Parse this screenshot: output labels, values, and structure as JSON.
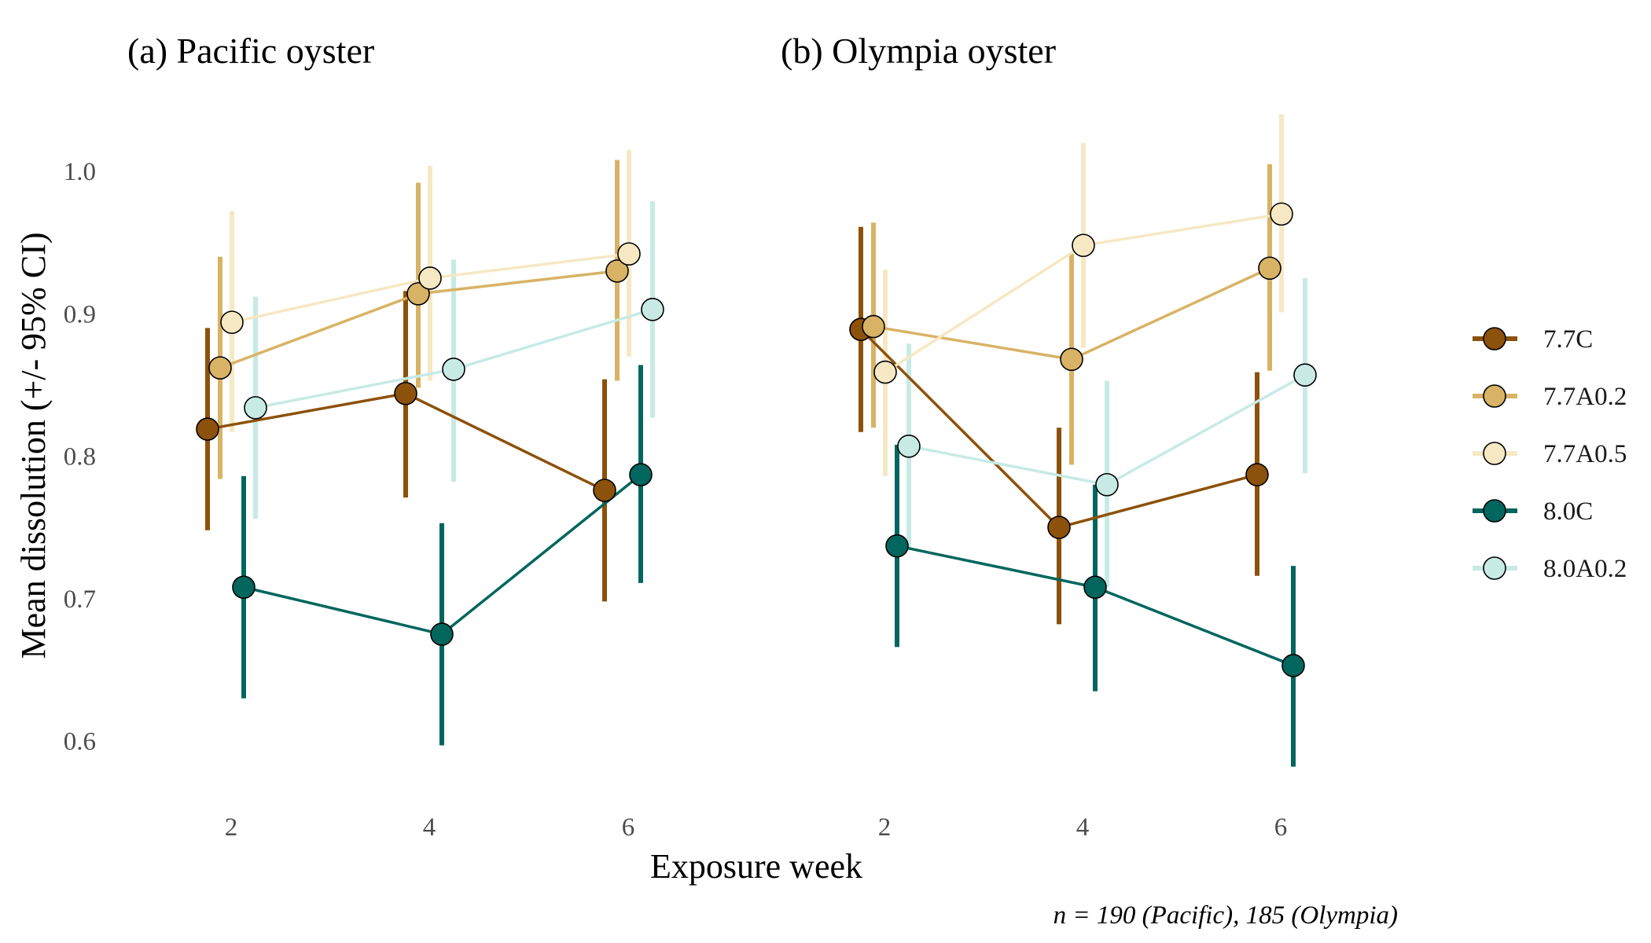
{
  "chart_data": {
    "type": "line",
    "ylabel": "Mean dissolution (+/- 95% CI)",
    "xlabel": "Exposure week",
    "note": "n = 190 (Pacific), 185 (Olympia)",
    "ylim": [
      0.55,
      1.05
    ],
    "yticks": [
      0.6,
      0.7,
      0.8,
      0.9,
      1.0
    ],
    "ytick_labels": [
      "0.6",
      "0.7",
      "0.8",
      "0.9",
      "1.0"
    ],
    "x_categories": [
      "2",
      "4",
      "6"
    ],
    "grid": false,
    "legend_position": "right",
    "series_styles": [
      {
        "name": "7.7C",
        "color": "#8c510a"
      },
      {
        "name": "7.7A0.2",
        "color": "#d8b365"
      },
      {
        "name": "7.7A0.5",
        "color": "#f6e8c3"
      },
      {
        "name": "8.0C",
        "color": "#01665e"
      },
      {
        "name": "8.0A0.2",
        "color": "#c7eae5"
      }
    ],
    "panels": [
      {
        "title": "(a) Pacific oyster",
        "series": [
          {
            "name": "7.7C",
            "values": [
              0.819,
              0.844,
              0.776
            ],
            "ci_low": [
              0.748,
              0.771,
              0.698
            ],
            "ci_high": [
              0.89,
              0.916,
              0.854
            ]
          },
          {
            "name": "7.7A0.2",
            "values": [
              0.862,
              0.914,
              0.93
            ],
            "ci_low": [
              0.784,
              0.848,
              0.853
            ],
            "ci_high": [
              0.94,
              0.992,
              1.008
            ]
          },
          {
            "name": "7.7A0.5",
            "values": [
              0.894,
              0.925,
              0.942
            ],
            "ci_low": [
              0.817,
              0.853,
              0.87
            ],
            "ci_high": [
              0.972,
              1.004,
              1.015
            ]
          },
          {
            "name": "8.0C",
            "values": [
              0.708,
              0.675,
              0.787
            ],
            "ci_low": [
              0.63,
              0.597,
              0.711
            ],
            "ci_high": [
              0.786,
              0.753,
              0.864
            ]
          },
          {
            "name": "8.0A0.2",
            "values": [
              0.834,
              0.861,
              0.903
            ],
            "ci_low": [
              0.756,
              0.782,
              0.827
            ],
            "ci_high": [
              0.912,
              0.938,
              0.979
            ]
          }
        ]
      },
      {
        "title": "(b) Olympia oyster",
        "series": [
          {
            "name": "7.7C",
            "values": [
              0.889,
              0.75,
              0.787
            ],
            "ci_low": [
              0.817,
              0.682,
              0.716
            ],
            "ci_high": [
              0.961,
              0.82,
              0.859
            ]
          },
          {
            "name": "7.7A0.2",
            "values": [
              0.891,
              0.868,
              0.932
            ],
            "ci_low": [
              0.82,
              0.794,
              0.86
            ],
            "ci_high": [
              0.964,
              0.942,
              1.005
            ]
          },
          {
            "name": "7.7A0.5",
            "values": [
              0.859,
              0.948,
              0.97
            ],
            "ci_low": [
              0.786,
              0.876,
              0.901
            ],
            "ci_high": [
              0.931,
              1.02,
              1.04
            ]
          },
          {
            "name": "8.0C",
            "values": [
              0.737,
              0.708,
              0.653
            ],
            "ci_low": [
              0.666,
              0.635,
              0.582
            ],
            "ci_high": [
              0.808,
              0.78,
              0.723
            ]
          },
          {
            "name": "8.0A0.2",
            "values": [
              0.807,
              0.78,
              0.857
            ],
            "ci_low": [
              0.735,
              0.708,
              0.788
            ],
            "ci_high": [
              0.879,
              0.853,
              0.925
            ]
          }
        ]
      }
    ]
  }
}
